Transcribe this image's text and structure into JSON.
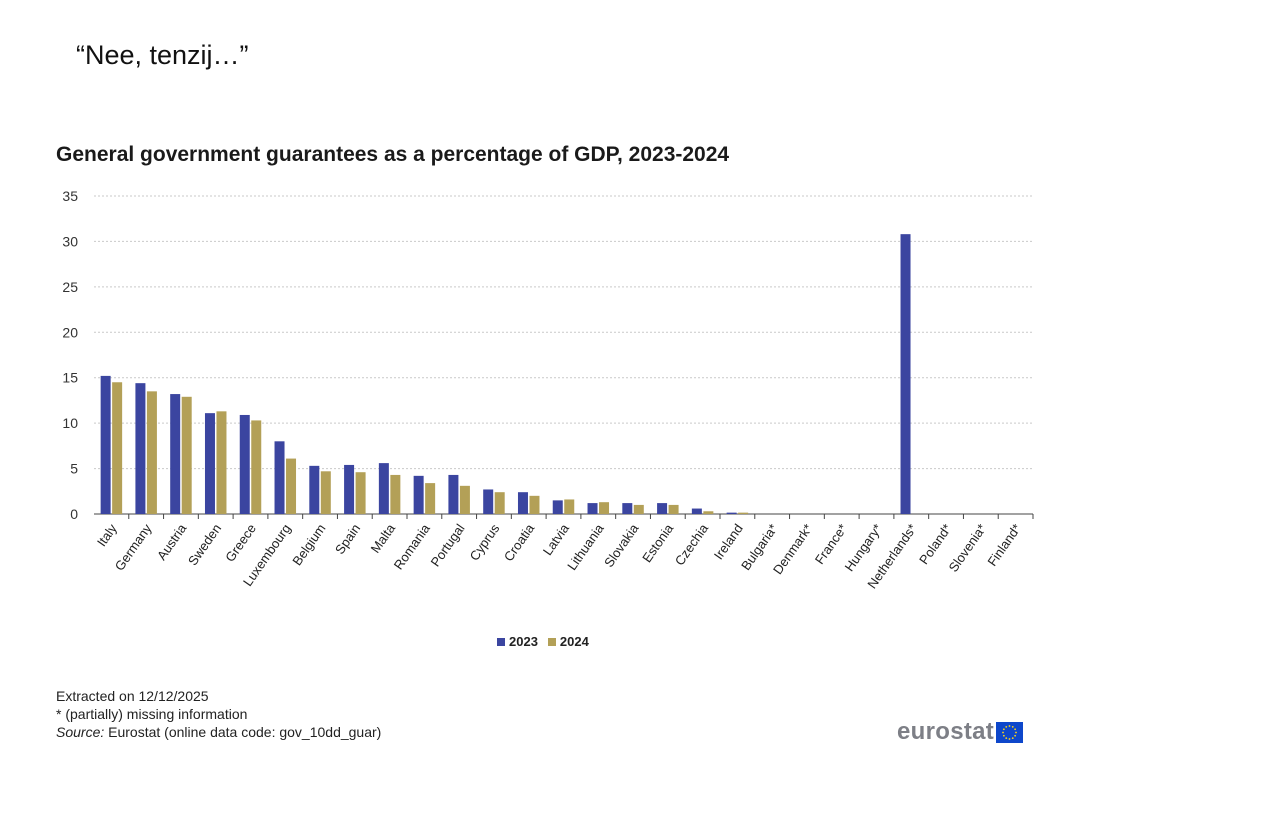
{
  "slide": {
    "quote": "“Nee, tenzij…”"
  },
  "chart_data": {
    "type": "bar",
    "title": "General government guarantees as a percentage of GDP, 2023-2024",
    "categories": [
      "Italy",
      "Germany",
      "Austria",
      "Sweden",
      "Greece",
      "Luxembourg",
      "Belgium",
      "Spain",
      "Malta",
      "Romania",
      "Portugal",
      "Cyprus",
      "Croatia",
      "Latvia",
      "Lithuania",
      "Slovakia",
      "Estonia",
      "Czechia",
      "Ireland",
      "Bulgaria*",
      "Denmark*",
      "France*",
      "Hungary*",
      "Netherlands*",
      "Poland*",
      "Slovenia*",
      "Finland*"
    ],
    "series": [
      {
        "name": "2023",
        "color": "#3b45a0",
        "values": [
          15.2,
          14.4,
          13.2,
          11.1,
          10.9,
          8.0,
          5.3,
          5.4,
          5.6,
          4.2,
          4.3,
          2.7,
          2.4,
          1.5,
          1.2,
          1.2,
          1.2,
          0.6,
          0.15,
          null,
          null,
          null,
          null,
          30.8,
          null,
          null,
          null
        ]
      },
      {
        "name": "2024",
        "color": "#b3a057",
        "values": [
          14.5,
          13.5,
          12.9,
          11.3,
          10.3,
          6.1,
          4.7,
          4.6,
          4.3,
          3.4,
          3.1,
          2.4,
          2.0,
          1.6,
          1.3,
          1.0,
          1.0,
          0.3,
          0.15,
          null,
          null,
          null,
          null,
          null,
          null,
          null,
          null
        ]
      }
    ],
    "yticks": [
      0,
      5,
      10,
      15,
      20,
      25,
      30,
      35
    ],
    "ylim": [
      0,
      35
    ],
    "xlabel": "",
    "ylabel": "",
    "grid": true,
    "legend_position": "bottom-center"
  },
  "legend": {
    "label_2023": "2023",
    "label_2024": "2024"
  },
  "footnotes": {
    "extracted": "Extracted on 12/12/2025",
    "missing": "* (partially) missing information",
    "source_label": "Source:",
    "source_text": " Eurostat (online data code: gov_10dd_guar)"
  },
  "logo": {
    "text": "eurostat",
    "accent": "#0e47cb",
    "star_color": "#ffd617"
  }
}
